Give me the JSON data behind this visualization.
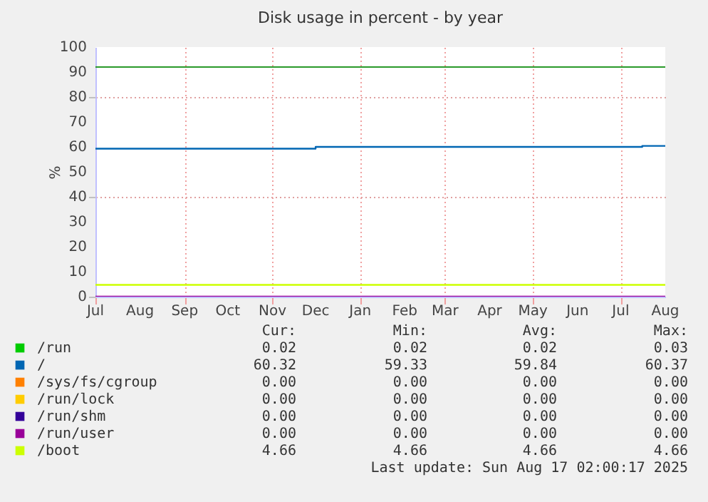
{
  "chart_data": {
    "type": "step",
    "title": "Disk usage in percent - by year",
    "ylabel": "%",
    "xlim": [
      "2024-07-01",
      "2025-08-01"
    ],
    "xticks": [
      {
        "value": "2024-07-01",
        "label": "Jul"
      },
      {
        "value": "2024-08-01",
        "label": "Aug"
      },
      {
        "value": "2024-09-01",
        "label": "Sep"
      },
      {
        "value": "2024-10-01",
        "label": "Oct"
      },
      {
        "value": "2024-11-01",
        "label": "Nov"
      },
      {
        "value": "2024-12-01",
        "label": "Dec"
      },
      {
        "value": "2025-01-01",
        "label": "Jan"
      },
      {
        "value": "2025-02-01",
        "label": "Feb"
      },
      {
        "value": "2025-03-01",
        "label": "Mar"
      },
      {
        "value": "2025-04-01",
        "label": "Apr"
      },
      {
        "value": "2025-05-01",
        "label": "May"
      },
      {
        "value": "2025-06-01",
        "label": "Jun"
      },
      {
        "value": "2025-07-01",
        "label": "Jul"
      },
      {
        "value": "2025-08-01",
        "label": "Aug"
      }
    ],
    "ylim": [
      0,
      100
    ],
    "yticks": [
      0,
      10,
      20,
      30,
      40,
      50,
      60,
      70,
      80,
      90,
      100
    ],
    "grid": true,
    "legend": "bottom",
    "line_style": "solid",
    "marker": "none",
    "ref_lines": [
      {
        "axis": "y",
        "value": 92,
        "color": "#2a9a2a"
      }
    ],
    "series": [
      {
        "name": "/run",
        "color": "#00cc00"
      },
      {
        "name": "/",
        "color": "#0066b3",
        "x": [
          "2024-07-01",
          "2024-12-01",
          "2025-07-16",
          "2025-08-01"
        ],
        "values": [
          59.3,
          60.0,
          60.4,
          60.4
        ]
      },
      {
        "name": "/sys/fs/cgroup",
        "color": "#ff8000"
      },
      {
        "name": "/run/lock",
        "color": "#ffcc00"
      },
      {
        "name": "/run/shm",
        "color": "#330099"
      },
      {
        "name": "/run/user",
        "color": "#990099",
        "x": [
          "2024-07-01",
          "2025-08-01"
        ],
        "values": [
          0,
          0
        ]
      },
      {
        "name": "/boot",
        "color": "#ccff00",
        "x": [
          "2024-07-01",
          "2025-08-01"
        ],
        "values": [
          4.7,
          4.7
        ]
      }
    ],
    "annotations": [
      "Cur:",
      "Min:",
      "Avg:",
      "Max:",
      "0.02",
      "0.02",
      "0.02",
      "0.03",
      "60.32",
      "59.33",
      "59.84",
      "60.37",
      "0.00",
      "0.00",
      "0.00",
      "0.00",
      "0.00",
      "0.00",
      "0.00",
      "0.00",
      "0.00",
      "0.00",
      "0.00",
      "0.00",
      "0.00",
      "0.00",
      "0.00",
      "0.00",
      "4.66",
      "4.66",
      "4.66",
      "4.66",
      "Last update:  Sun Aug 17 02:00:17 2025"
    ]
  }
}
